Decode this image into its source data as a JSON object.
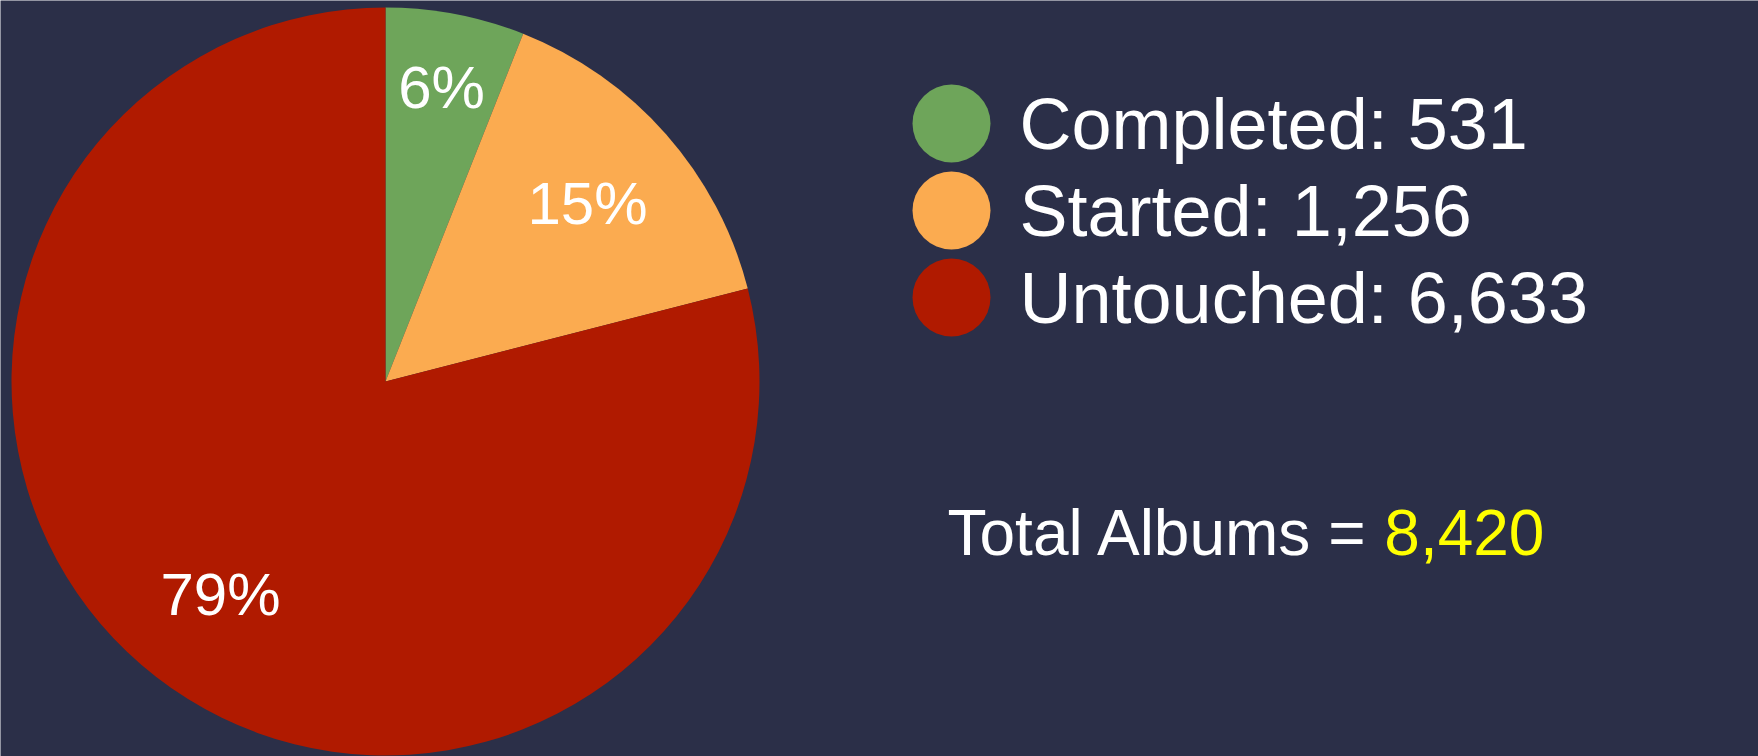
{
  "chart_data": {
    "type": "pie",
    "categories": [
      "Completed: 531",
      "Started: 1,256",
      "Untouched: 6,633"
    ],
    "values": [
      6,
      15,
      79
    ],
    "colors": [
      "#6ea55a",
      "#fbab50",
      "#b01a00"
    ],
    "value_labels": [
      "6%",
      "15%",
      "79%"
    ],
    "legend": "right",
    "annotations": [
      "Total Albums = 8,420"
    ]
  }
}
